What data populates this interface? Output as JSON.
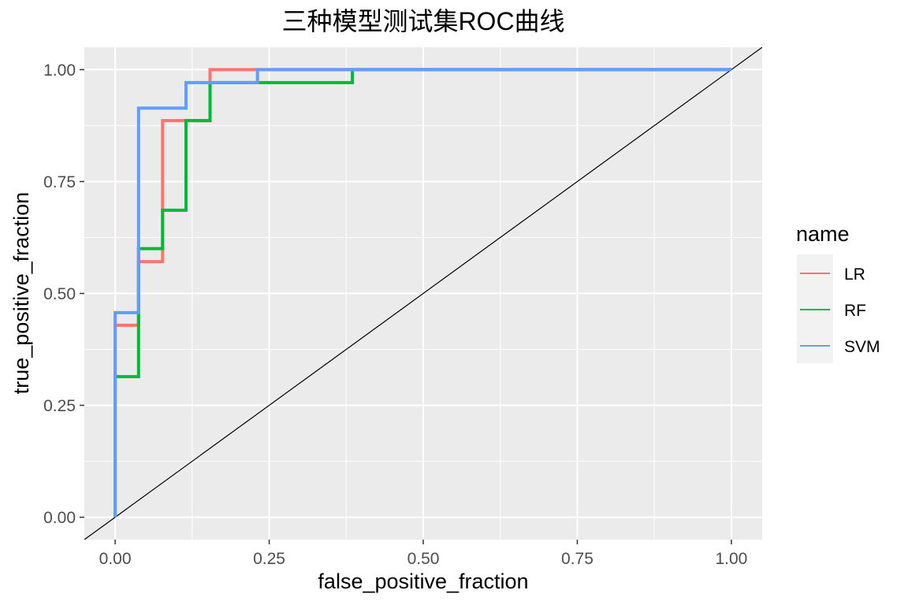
{
  "chart_data": {
    "type": "line",
    "title": "三种模型测试集ROC曲线",
    "xlabel": "false_positive_fraction",
    "ylabel": "true_positive_fraction",
    "xlim": [
      -0.05,
      1.05
    ],
    "ylim": [
      -0.05,
      1.05
    ],
    "x_ticks": [
      "0.00",
      "0.25",
      "0.50",
      "0.75",
      "1.00"
    ],
    "y_ticks": [
      "0.00",
      "0.25",
      "0.50",
      "0.75",
      "1.00"
    ],
    "grid": true,
    "legend": {
      "title": "name",
      "position": "right"
    },
    "reference_line": {
      "x": [
        -0.05,
        1.05
      ],
      "y": [
        -0.05,
        1.05
      ],
      "color": "#000000"
    },
    "series": [
      {
        "name": "LR",
        "color": "#F8766D",
        "points": [
          [
            0,
            0
          ],
          [
            0,
            0.429
          ],
          [
            0.038,
            0.429
          ],
          [
            0.038,
            0.571
          ],
          [
            0.077,
            0.571
          ],
          [
            0.077,
            0.886
          ],
          [
            0.154,
            0.886
          ],
          [
            0.154,
            1.0
          ],
          [
            1.0,
            1.0
          ]
        ]
      },
      {
        "name": "RF",
        "color": "#00BA38",
        "points": [
          [
            0,
            0
          ],
          [
            0,
            0.314
          ],
          [
            0.038,
            0.314
          ],
          [
            0.038,
            0.6
          ],
          [
            0.077,
            0.6
          ],
          [
            0.077,
            0.686
          ],
          [
            0.115,
            0.686
          ],
          [
            0.115,
            0.886
          ],
          [
            0.154,
            0.886
          ],
          [
            0.154,
            0.971
          ],
          [
            0.385,
            0.971
          ],
          [
            0.385,
            1.0
          ],
          [
            1.0,
            1.0
          ]
        ]
      },
      {
        "name": "SVM",
        "color": "#619CFF",
        "points": [
          [
            0,
            0
          ],
          [
            0,
            0.457
          ],
          [
            0.038,
            0.457
          ],
          [
            0.038,
            0.914
          ],
          [
            0.115,
            0.914
          ],
          [
            0.115,
            0.971
          ],
          [
            0.231,
            0.971
          ],
          [
            0.231,
            1.0
          ],
          [
            1.0,
            1.0
          ]
        ]
      }
    ]
  }
}
